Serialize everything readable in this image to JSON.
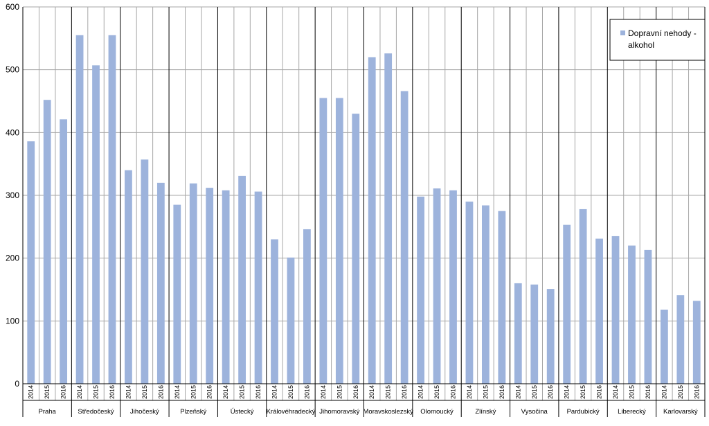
{
  "chart_data": {
    "type": "bar",
    "yticks": [
      "0",
      "100",
      "200",
      "300",
      "400",
      "500",
      "600"
    ],
    "ylim": [
      0,
      600
    ],
    "grid": true,
    "legend_position": "top-right",
    "series": [
      {
        "name": "Dopravní nehody - alkohol",
        "legend_lines": [
          "Dopravní nehody -",
          "alkohol"
        ],
        "color": "#9db3dc"
      }
    ],
    "groups": [
      {
        "region": "Praha",
        "values": [
          386,
          452,
          421
        ]
      },
      {
        "region": "Středočeský",
        "values": [
          555,
          507,
          555
        ]
      },
      {
        "region": "Jihočeský",
        "values": [
          340,
          357,
          320
        ]
      },
      {
        "region": "Plzeňský",
        "values": [
          285,
          319,
          312
        ]
      },
      {
        "region": "Ústecký",
        "values": [
          308,
          331,
          306
        ]
      },
      {
        "region": "Královéhradecký",
        "values": [
          230,
          201,
          246
        ]
      },
      {
        "region": "Jihomoravský",
        "values": [
          455,
          455,
          430
        ]
      },
      {
        "region": "Moravskoslezský",
        "values": [
          520,
          526,
          466
        ]
      },
      {
        "region": "Olomoucký",
        "values": [
          298,
          311,
          308
        ]
      },
      {
        "region": "Zlínský",
        "values": [
          290,
          284,
          275
        ]
      },
      {
        "region": "Vysočina",
        "values": [
          160,
          158,
          151
        ]
      },
      {
        "region": "Pardubický",
        "values": [
          253,
          278,
          231
        ]
      },
      {
        "region": "Liberecký",
        "values": [
          235,
          220,
          213
        ]
      },
      {
        "region": "Karlovarský",
        "values": [
          118,
          141,
          132
        ]
      }
    ],
    "years": [
      "2014",
      "2015",
      "2016"
    ]
  }
}
